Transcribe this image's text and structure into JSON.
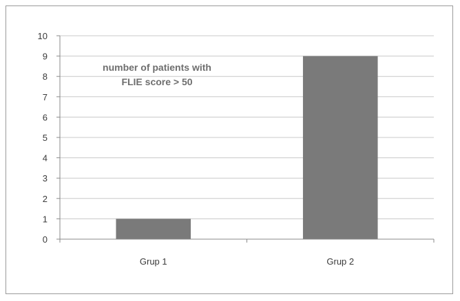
{
  "chart_data": {
    "type": "bar",
    "categories": [
      "Grup 1",
      "Grup 2"
    ],
    "values": [
      1,
      9
    ],
    "title": "",
    "xlabel": "",
    "ylabel": "",
    "ylim": [
      0,
      10
    ],
    "yticks": [
      "0",
      "1",
      "2",
      "3",
      "4",
      "5",
      "6",
      "7",
      "8",
      "9",
      "10"
    ],
    "grid": true,
    "annotation": [
      "number of patients with",
      "FLIE score > 50"
    ],
    "colors": {
      "bar": "#7a7a7a",
      "grid": "#c8c8c8",
      "axis": "#8a8a8a"
    }
  }
}
